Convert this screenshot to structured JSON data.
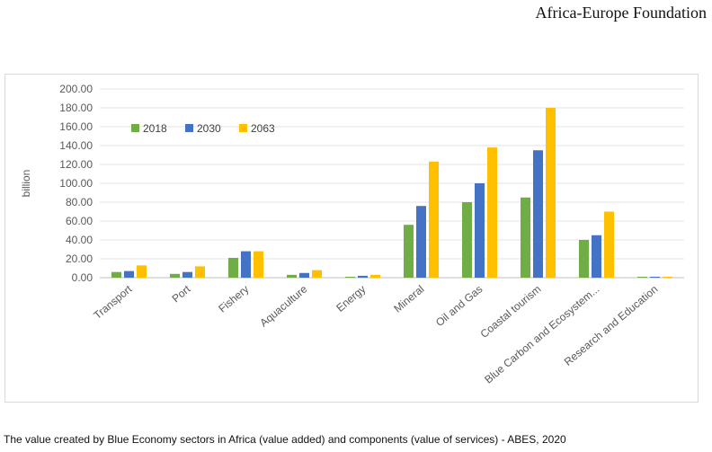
{
  "header": {
    "organization": "Africa-Europe Foundation"
  },
  "caption": "The value created by Blue Economy sectors in Africa (value added) and components (value of services) - ABES, 2020",
  "chart_data": {
    "type": "bar",
    "ylabel": "billion",
    "ylim": [
      0,
      200
    ],
    "yticks": [
      "0.00",
      "20.00",
      "40.00",
      "60.00",
      "80.00",
      "100.00",
      "120.00",
      "140.00",
      "160.00",
      "180.00",
      "200.00"
    ],
    "categories": [
      "Transport",
      "Port",
      "Fishery",
      "Aquaculture",
      "Energy",
      "Mineral",
      "Oil and Gas",
      "Coastal tourism",
      "Blue Carbon and Ecosystem...",
      "Research and Education"
    ],
    "series": [
      {
        "name": "2018",
        "color": "#70ad47",
        "values": [
          6,
          4,
          21,
          3,
          1,
          56,
          80,
          85,
          40,
          1
        ]
      },
      {
        "name": "2030",
        "color": "#4472c4",
        "values": [
          7,
          6,
          28,
          5,
          2,
          76,
          100,
          135,
          45,
          1
        ]
      },
      {
        "name": "2063",
        "color": "#ffc000",
        "values": [
          13,
          12,
          28,
          8,
          3,
          123,
          138,
          180,
          70,
          1
        ]
      }
    ],
    "legend_position": "top-left",
    "grid": true
  }
}
